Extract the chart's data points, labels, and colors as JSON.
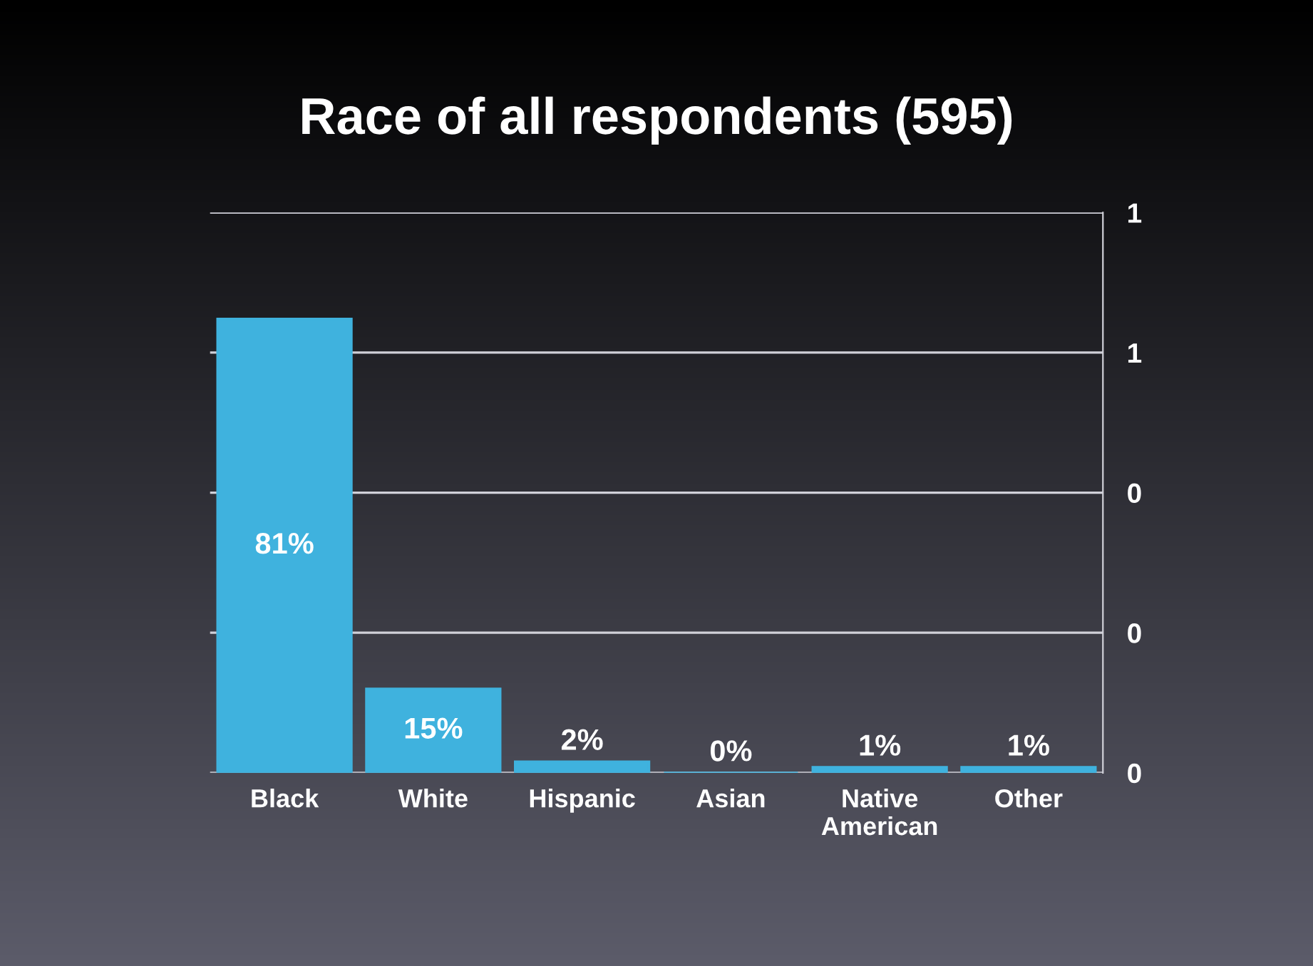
{
  "chart_data": {
    "type": "bar",
    "title": "Race of all respondents (595)",
    "categories": [
      "Black",
      "White",
      "Hispanic",
      "Asian",
      "Native\nAmerican",
      "Other"
    ],
    "values": [
      0.81,
      0.15,
      0.02,
      0.0,
      0.01,
      0.01
    ],
    "value_labels": [
      "81%",
      "15%",
      "2%",
      "0%",
      "1%",
      "1%"
    ],
    "color": "#3fb2de",
    "ylim": [
      0,
      1
    ],
    "yticks": [
      {
        "value": 0,
        "label": "0"
      },
      {
        "value": 0.25,
        "label": "0"
      },
      {
        "value": 0.5,
        "label": "0"
      },
      {
        "value": 0.75,
        "label": "1"
      },
      {
        "value": 1,
        "label": "1"
      }
    ],
    "grid": "y"
  }
}
